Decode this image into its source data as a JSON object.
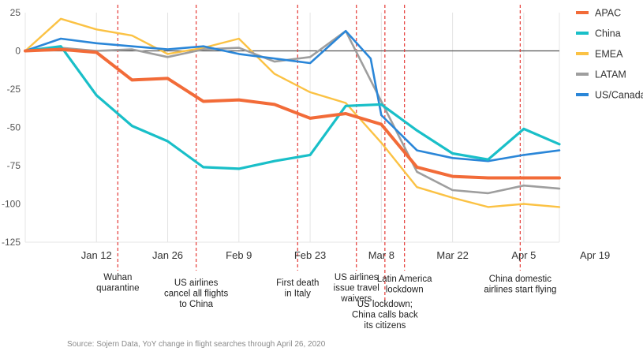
{
  "chart_data": {
    "type": "line",
    "title": "",
    "xlabel": "",
    "ylabel": "",
    "ylim": [
      -125,
      25
    ],
    "yticks": [
      25,
      0,
      -25,
      -50,
      -75,
      -100,
      -125
    ],
    "x_tick_labels": [
      "Jan 12",
      "Jan 26",
      "Feb 9",
      "Feb 23",
      "Mar 8",
      "Mar 22",
      "Apr 5",
      "Apr 19"
    ],
    "x_weeks": [
      -1,
      0,
      1,
      2,
      3,
      4,
      5,
      6,
      7,
      8,
      8.7,
      9,
      10,
      11,
      12,
      13,
      14
    ],
    "grid": "vertical",
    "legend_position": "right",
    "series": [
      {
        "name": "APAC",
        "color": "#F26B38",
        "values": [
          0,
          1,
          -1,
          -19,
          -18,
          -33,
          -32,
          -35,
          -44,
          -41,
          null,
          -48,
          -76,
          -82,
          -83,
          -83,
          -83
        ]
      },
      {
        "name": "China",
        "color": "#19BFC8",
        "values": [
          0,
          3,
          -29,
          -49,
          -59,
          -76,
          -77,
          -72,
          -68,
          -36,
          null,
          -35,
          -52,
          -67,
          -71,
          -51,
          -61
        ]
      },
      {
        "name": "EMEA",
        "color": "#FBC244",
        "values": [
          0,
          21,
          14,
          10,
          -2,
          2,
          8,
          -15,
          -27,
          -34,
          null,
          -60,
          -89,
          -96,
          -102,
          -100,
          -102
        ]
      },
      {
        "name": "LATAM",
        "color": "#9E9E9E",
        "values": [
          0,
          2,
          0,
          1,
          -4,
          1,
          2,
          -7,
          -4,
          13,
          null,
          -33,
          -79,
          -91,
          -93,
          -88,
          -90
        ]
      },
      {
        "name": "US/Canada",
        "color": "#2A86D8",
        "values": [
          0,
          8,
          5,
          3,
          1,
          3,
          -2,
          -5,
          -8,
          13,
          -5,
          -42,
          -65,
          -70,
          -72,
          -68,
          -65
        ]
      }
    ],
    "event_lines": [
      {
        "x": 1.6,
        "label": [
          "Wuhan",
          "quarantine"
        ]
      },
      {
        "x": 3.8,
        "label": [
          "US airlines",
          "cancel all flights",
          "to China"
        ]
      },
      {
        "x": 6.65,
        "label": [
          "First death",
          "in Italy"
        ]
      },
      {
        "x": 8.3,
        "label": [
          "US airlines",
          "issue travel",
          "waivers"
        ]
      },
      {
        "x": 9.1,
        "label": [
          "US lockdown;",
          "China calls back",
          "its citizens"
        ]
      },
      {
        "x": 9.65,
        "label": [
          "Latin America",
          "lockdown"
        ]
      },
      {
        "x": 12.9,
        "label": [
          "China domestic",
          "airlines start flying"
        ]
      }
    ]
  },
  "source": "Source: Sojern Data, YoY change in flight searches through April 26, 2020"
}
